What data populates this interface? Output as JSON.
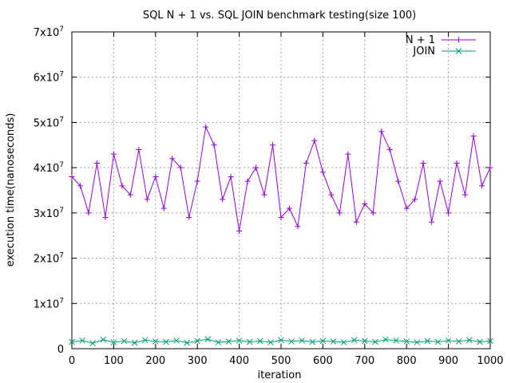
{
  "chart_data": {
    "type": "line",
    "title": "SQL N + 1 vs. SQL JOIN benchmark testing(size 100)",
    "xlabel": "iteration",
    "ylabel": "execution time(nanoseconds)",
    "xlim": [
      0,
      1000
    ],
    "ylim": [
      0,
      70000000
    ],
    "x_ticks": [
      "0",
      "100",
      "200",
      "300",
      "400",
      "500",
      "600",
      "700",
      "800",
      "900",
      "1000"
    ],
    "y_ticks": [
      {
        "value": 0,
        "mantissa": "0",
        "exp": ""
      },
      {
        "value": 10000000,
        "mantissa": "1x10",
        "exp": "7"
      },
      {
        "value": 20000000,
        "mantissa": "2x10",
        "exp": "7"
      },
      {
        "value": 30000000,
        "mantissa": "3x10",
        "exp": "7"
      },
      {
        "value": 40000000,
        "mantissa": "4x10",
        "exp": "7"
      },
      {
        "value": 50000000,
        "mantissa": "5x10",
        "exp": "7"
      },
      {
        "value": 60000000,
        "mantissa": "6x10",
        "exp": "7"
      },
      {
        "value": 70000000,
        "mantissa": "7x10",
        "exp": "7"
      }
    ],
    "grid": true,
    "legend_position": "top-right",
    "series": [
      {
        "name": "N + 1",
        "color": "#9400d3",
        "marker": "plus",
        "x": [
          0,
          20,
          40,
          60,
          80,
          100,
          120,
          140,
          160,
          180,
          200,
          220,
          240,
          260,
          280,
          300,
          320,
          340,
          360,
          380,
          400,
          420,
          440,
          460,
          480,
          500,
          520,
          540,
          560,
          580,
          600,
          620,
          640,
          660,
          680,
          700,
          720,
          740,
          760,
          780,
          800,
          820,
          840,
          860,
          880,
          900,
          920,
          940,
          960,
          980,
          1000
        ],
        "values": [
          38000000,
          36000000,
          30000000,
          41000000,
          29000000,
          43000000,
          36000000,
          34000000,
          44000000,
          33000000,
          38000000,
          31000000,
          42000000,
          40000000,
          29000000,
          37000000,
          49000000,
          45000000,
          33000000,
          38000000,
          26000000,
          37000000,
          40000000,
          34000000,
          45000000,
          29000000,
          31000000,
          27000000,
          41000000,
          46000000,
          39000000,
          34000000,
          30000000,
          43000000,
          28000000,
          32000000,
          30000000,
          48000000,
          44000000,
          37000000,
          31000000,
          33000000,
          41000000,
          28000000,
          37000000,
          30000000,
          41000000,
          34000000,
          47000000,
          36000000,
          40000000
        ]
      },
      {
        "name": "JOIN",
        "color": "#009e73",
        "marker": "cross",
        "x": [
          0,
          25,
          50,
          75,
          100,
          125,
          150,
          175,
          200,
          225,
          250,
          275,
          300,
          325,
          350,
          375,
          400,
          425,
          450,
          475,
          500,
          525,
          550,
          575,
          600,
          625,
          650,
          675,
          700,
          725,
          750,
          775,
          800,
          825,
          850,
          875,
          900,
          925,
          950,
          975,
          1000
        ],
        "values": [
          1500000,
          1800000,
          1200000,
          2000000,
          1400000,
          1700000,
          1300000,
          1900000,
          1600000,
          1500000,
          1800000,
          1300000,
          1700000,
          2100000,
          1400000,
          1600000,
          1800000,
          1500000,
          1700000,
          1400000,
          1900000,
          1600000,
          1800000,
          1500000,
          1700000,
          1600000,
          1400000,
          1900000,
          1700000,
          1500000,
          2000000,
          1800000,
          1600000,
          1400000,
          1700000,
          1500000,
          1800000,
          1600000,
          1900000,
          1500000,
          1700000
        ]
      }
    ]
  }
}
